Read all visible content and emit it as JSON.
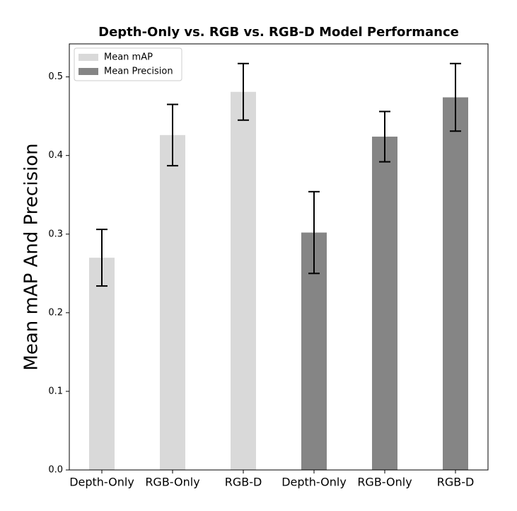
{
  "chart_data": {
    "type": "bar",
    "title": "Depth-Only vs. RGB vs. RGB-D Model Performance",
    "y_label": "Mean mAP And Precision",
    "categories": [
      "Depth-Only",
      "RGB-Only",
      "RGB-D",
      "Depth-Only",
      "RGB-Only",
      "RGB-D"
    ],
    "series": [
      {
        "name": "Mean mAP",
        "color": "#d9d9d9",
        "values": [
          0.27,
          0.426,
          0.481,
          null,
          null,
          null
        ],
        "errors": [
          0.036,
          0.039,
          0.036,
          null,
          null,
          null
        ]
      },
      {
        "name": "Mean Precision",
        "color": "#858585",
        "values": [
          null,
          null,
          null,
          0.302,
          0.424,
          0.474
        ],
        "errors": [
          null,
          null,
          null,
          0.052,
          0.032,
          0.043
        ]
      }
    ],
    "ylim": [
      0,
      0.542
    ],
    "yticks": [
      {
        "value": 0,
        "label": "0.0"
      },
      0.1,
      0.2,
      0.3,
      0.4,
      0.5
    ],
    "legend": "upper left"
  }
}
